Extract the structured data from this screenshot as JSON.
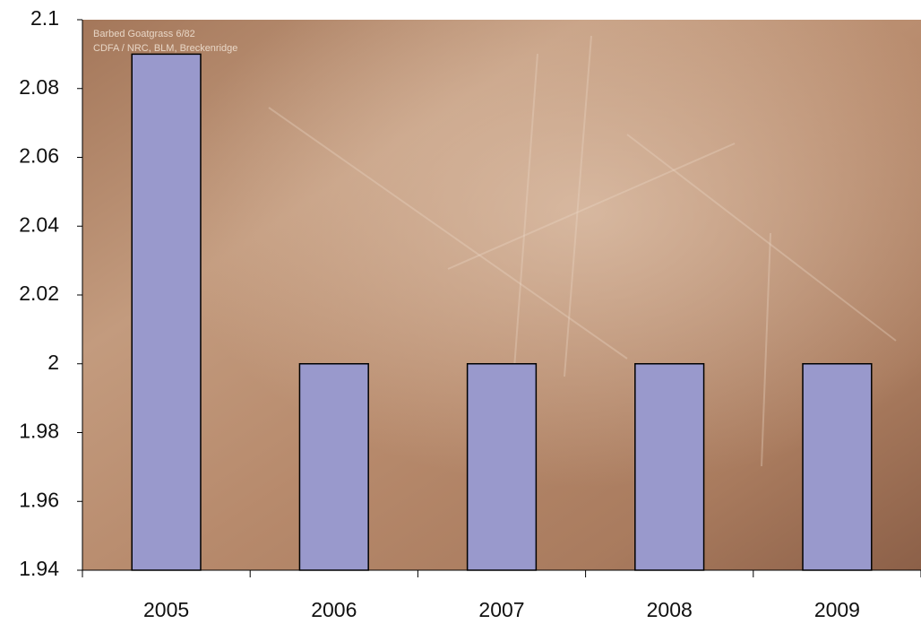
{
  "photo_caption": [
    "Barbed Goatgrass 6/82",
    "CDFA / NRC, BLM, Breckenridge"
  ],
  "chart_data": {
    "type": "bar",
    "categories": [
      "2005",
      "2006",
      "2007",
      "2008",
      "2009"
    ],
    "values": [
      2.09,
      2,
      2,
      2,
      2
    ],
    "color": "#9999cc",
    "ylim": [
      1.94,
      2.1
    ],
    "yticks": [
      1.94,
      1.96,
      1.98,
      2,
      2.02,
      2.04,
      2.06,
      2.08,
      2.1
    ]
  }
}
